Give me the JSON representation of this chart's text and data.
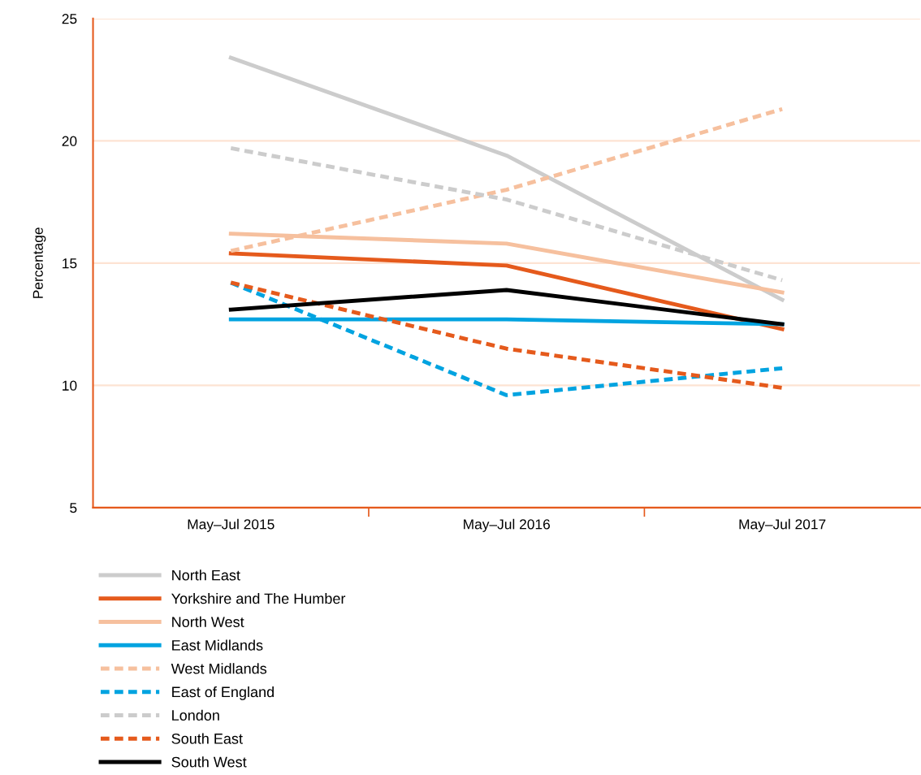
{
  "chart_data": {
    "type": "line",
    "ylabel": "Percentage",
    "categories": [
      "May–Jul 2015",
      "May–Jul 2016",
      "May–Jul 2017"
    ],
    "ylim": [
      5,
      25
    ],
    "yticks": [
      5,
      10,
      15,
      20,
      25
    ],
    "grid": "y",
    "legend": "bottom",
    "marker": "none",
    "series": [
      {
        "name": "North East",
        "color": "#cccccc",
        "line_style": "solid",
        "values": [
          23.4,
          19.4,
          13.5
        ]
      },
      {
        "name": "Yorkshire and The Humber",
        "color": "#e55a1c",
        "line_style": "solid",
        "values": [
          15.4,
          14.9,
          12.3
        ]
      },
      {
        "name": "North West",
        "color": "#f6c09e",
        "line_style": "solid",
        "values": [
          16.2,
          15.8,
          13.8
        ]
      },
      {
        "name": "East Midlands",
        "color": "#00a3e0",
        "line_style": "solid",
        "values": [
          12.7,
          12.7,
          12.5
        ]
      },
      {
        "name": "West Midlands",
        "color": "#f6c09e",
        "line_style": "dashed",
        "values": [
          15.5,
          18.0,
          21.3
        ]
      },
      {
        "name": "East of England",
        "color": "#00a3e0",
        "line_style": "dashed",
        "values": [
          14.2,
          9.6,
          10.7
        ]
      },
      {
        "name": "London",
        "color": "#cccccc",
        "line_style": "dashed",
        "values": [
          19.7,
          17.6,
          14.3
        ]
      },
      {
        "name": "South East",
        "color": "#e55a1c",
        "line_style": "dashed",
        "values": [
          14.2,
          11.5,
          9.9
        ]
      },
      {
        "name": "South West",
        "color": "#000000",
        "line_style": "solid",
        "values": [
          13.1,
          13.9,
          12.5
        ]
      }
    ]
  }
}
